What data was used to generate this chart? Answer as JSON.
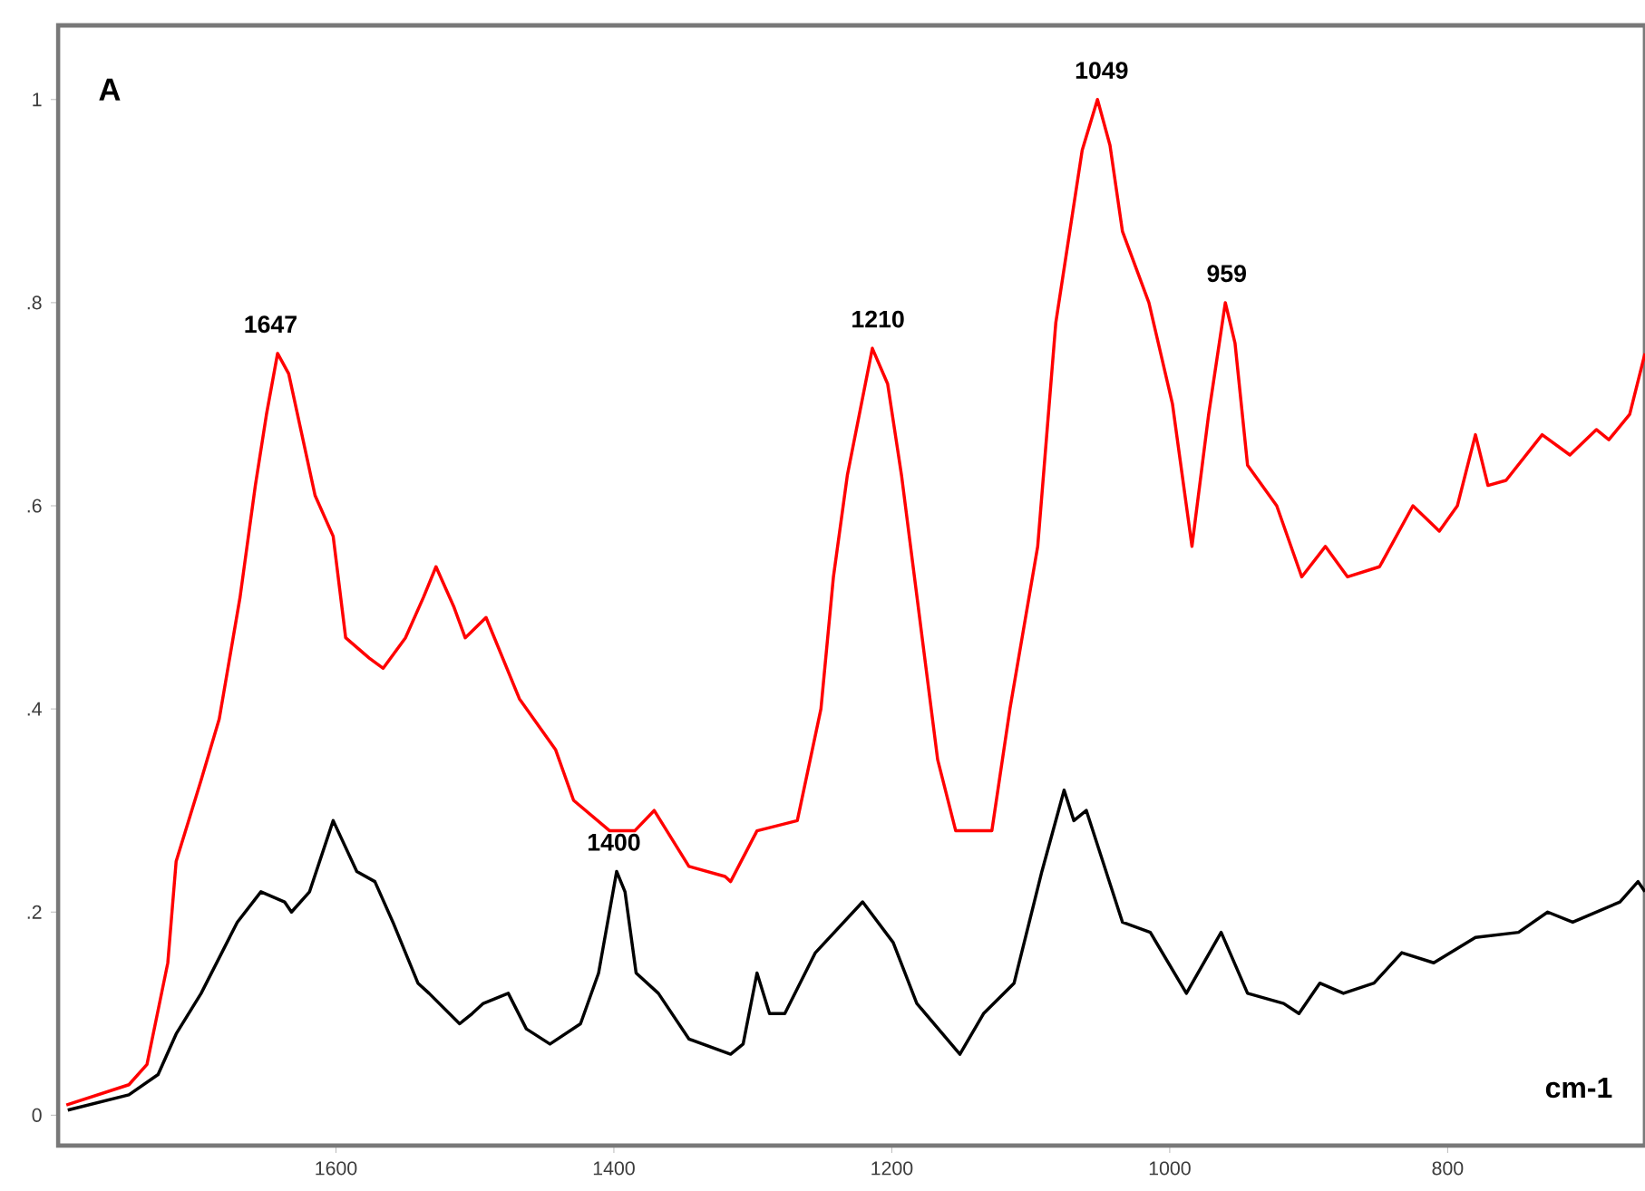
{
  "chart_data": {
    "type": "line",
    "xlabel": "cm-1",
    "xlim": [
      1800,
      658
    ],
    "ylim": [
      -0.03,
      1.073
    ],
    "xticks": [
      1600,
      1400,
      1200,
      1000,
      800
    ],
    "yticks": [
      {
        "value": 0,
        "label": "0"
      },
      {
        "value": 0.2,
        "label": ".2"
      },
      {
        "value": 0.4,
        "label": ".4"
      },
      {
        "value": 0.6,
        "label": ".6"
      },
      {
        "value": 0.8,
        "label": ".8"
      },
      {
        "value": 1,
        "label": "1"
      }
    ],
    "grid": false,
    "marker": "none",
    "line_style": "solid",
    "annotations": [
      "A",
      {
        "text": "1647",
        "x": 1647,
        "y": 0.75
      },
      {
        "text": "1400",
        "x": 1400,
        "y": 0.24
      },
      {
        "text": "1210",
        "x": 1210,
        "y": 0.755
      },
      {
        "text": "1049",
        "x": 1049,
        "y": 1.0
      },
      {
        "text": "959",
        "x": 959,
        "y": 0.8
      }
    ],
    "series": [
      {
        "color": "#ff0000",
        "x": [
          1794,
          1749,
          1736,
          1721,
          1715,
          1697,
          1684,
          1669,
          1658,
          1650,
          1642,
          1634,
          1615,
          1602,
          1593,
          1576,
          1566,
          1550,
          1537,
          1528,
          1515,
          1507,
          1492,
          1468,
          1442,
          1429,
          1403,
          1385,
          1371,
          1346,
          1320,
          1316,
          1297,
          1268,
          1251,
          1242,
          1232,
          1214,
          1203,
          1193,
          1180,
          1167,
          1154,
          1128,
          1115,
          1095,
          1082,
          1063,
          1052,
          1043,
          1034,
          1015,
          998,
          984,
          972,
          960,
          953,
          944,
          923,
          905,
          888,
          872,
          849,
          825,
          806,
          793,
          780,
          771,
          758,
          732,
          712,
          693,
          684,
          669,
          658
        ],
        "values": [
          0.01,
          0.03,
          0.05,
          0.15,
          0.25,
          0.33,
          0.39,
          0.51,
          0.62,
          0.69,
          0.75,
          0.73,
          0.61,
          0.57,
          0.47,
          0.45,
          0.44,
          0.47,
          0.51,
          0.54,
          0.5,
          0.47,
          0.49,
          0.41,
          0.36,
          0.31,
          0.28,
          0.28,
          0.3,
          0.245,
          0.235,
          0.23,
          0.28,
          0.29,
          0.4,
          0.53,
          0.63,
          0.755,
          0.72,
          0.63,
          0.49,
          0.35,
          0.28,
          0.28,
          0.4,
          0.56,
          0.78,
          0.95,
          1.0,
          0.955,
          0.87,
          0.8,
          0.7,
          0.56,
          0.69,
          0.8,
          0.76,
          0.64,
          0.6,
          0.53,
          0.56,
          0.53,
          0.54,
          0.6,
          0.575,
          0.6,
          0.67,
          0.62,
          0.625,
          0.67,
          0.65,
          0.675,
          0.665,
          0.69,
          0.75
        ]
      },
      {
        "color": "#000000",
        "x": [
          1793,
          1749,
          1728,
          1715,
          1697,
          1671,
          1654,
          1637,
          1632,
          1619,
          1602,
          1585,
          1572,
          1559,
          1541,
          1533,
          1511,
          1502,
          1494,
          1476,
          1463,
          1446,
          1424,
          1411,
          1398,
          1392,
          1384,
          1368,
          1346,
          1316,
          1307,
          1297,
          1288,
          1277,
          1255,
          1221,
          1199,
          1182,
          1151,
          1134,
          1112,
          1092,
          1076,
          1069,
          1060,
          1034,
          1014,
          988,
          963,
          944,
          918,
          907,
          892,
          875,
          853,
          833,
          810,
          780,
          749,
          728,
          710,
          676,
          663,
          658
        ],
        "values": [
          0.005,
          0.02,
          0.04,
          0.08,
          0.12,
          0.19,
          0.22,
          0.21,
          0.2,
          0.22,
          0.29,
          0.24,
          0.23,
          0.19,
          0.13,
          0.12,
          0.09,
          0.1,
          0.11,
          0.12,
          0.085,
          0.07,
          0.09,
          0.14,
          0.24,
          0.22,
          0.14,
          0.12,
          0.075,
          0.06,
          0.07,
          0.14,
          0.1,
          0.1,
          0.16,
          0.21,
          0.17,
          0.11,
          0.06,
          0.1,
          0.13,
          0.24,
          0.32,
          0.29,
          0.3,
          0.19,
          0.18,
          0.12,
          0.18,
          0.12,
          0.11,
          0.1,
          0.13,
          0.12,
          0.13,
          0.16,
          0.15,
          0.175,
          0.18,
          0.2,
          0.19,
          0.21,
          0.23,
          0.22
        ]
      }
    ]
  }
}
